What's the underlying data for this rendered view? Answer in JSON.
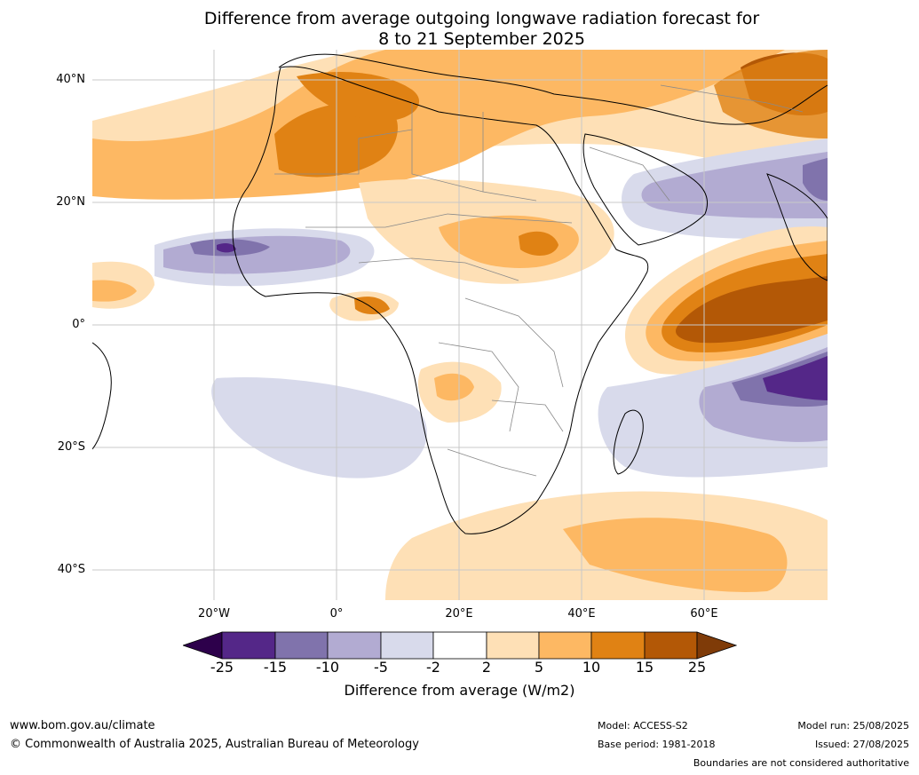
{
  "title_line1": "Difference from average outgoing longwave radiation forecast for",
  "title_line2": "8 to 21 September 2025",
  "lat_labels": [
    "40°N",
    "20°N",
    "0°",
    "20°S",
    "40°S"
  ],
  "lon_labels": [
    "20°W",
    "0°",
    "20°E",
    "40°E",
    "60°E"
  ],
  "colorbar": {
    "ticks": [
      "-25",
      "-15",
      "-10",
      "-5",
      "-2",
      "2",
      "5",
      "10",
      "15",
      "25"
    ],
    "label": "Difference from average (W/m2)",
    "colors": {
      "lt_-25": "#2d004b",
      "-25_-15": "#542788",
      "-15_-10": "#8073ac",
      "-10_-5": "#b2abd2",
      "-5_-2": "#d8daeb",
      "-2_2": "#ffffff",
      "2_5": "#fee0b6",
      "5_10": "#fdb863",
      "10_15": "#e08214",
      "15_25": "#b35806",
      "gt_25": "#7f3b08"
    }
  },
  "footer": {
    "website": "www.bom.gov.au/climate",
    "copyright": "© Commonwealth of Australia 2025, Australian Bureau of Meteorology",
    "model": "Model: ACCESS-S2",
    "base_period": "Base period: 1981-2018",
    "model_run": "Model run: 25/08/2025",
    "issued": "Issued: 27/08/2025",
    "disclaimer": "Boundaries are not considered authoritative"
  }
}
